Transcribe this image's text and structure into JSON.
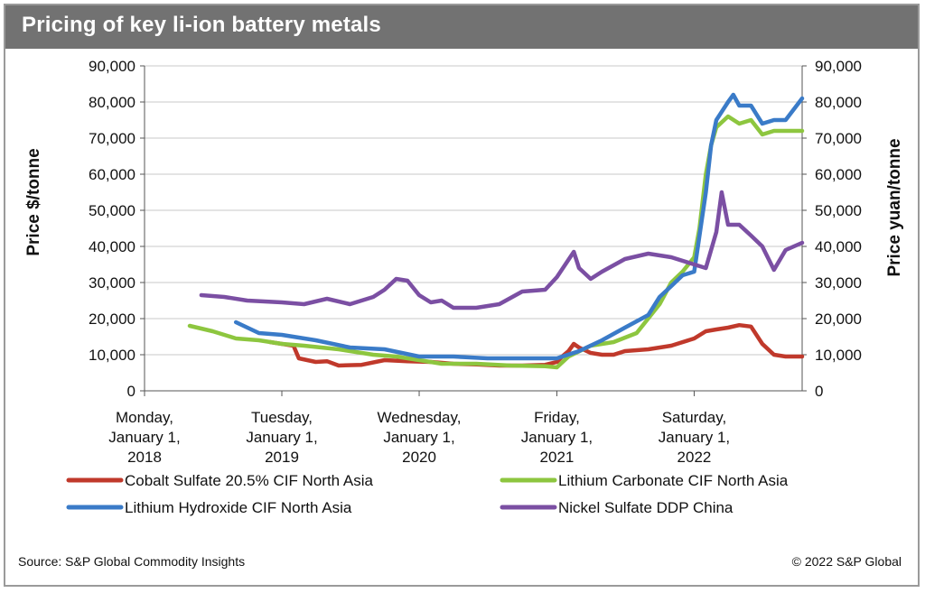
{
  "header": {
    "title": "Pricing of key li-ion battery metals"
  },
  "footer": {
    "source": "Source: S&P Global Commodity Insights",
    "copyright": "© 2022 S&P Global"
  },
  "chart_data": {
    "type": "line",
    "title": "Pricing of key li-ion battery metals",
    "ylabel": "Price $/tonne",
    "y2label": "Price yuan/tonne",
    "ylim": [
      0,
      90000
    ],
    "y2lim": [
      0,
      90000
    ],
    "yticks": [
      "0",
      "10,000",
      "20,000",
      "30,000",
      "40,000",
      "50,000",
      "60,000",
      "70,000",
      "80,000",
      "90,000"
    ],
    "y2ticks": [
      "0",
      "10,000",
      "20,000",
      "30,000",
      "40,000",
      "50,000",
      "60,000",
      "70,000",
      "80,000",
      "90,000"
    ],
    "xlim": [
      "2018-01-01",
      "2022-10-15"
    ],
    "xticks": [
      {
        "date": "2018-01-01",
        "lines": [
          "Monday,",
          "January 1,",
          "2018"
        ]
      },
      {
        "date": "2019-01-01",
        "lines": [
          "Tuesday,",
          "January 1,",
          "2019"
        ]
      },
      {
        "date": "2020-01-01",
        "lines": [
          "Wednesday,",
          "January 1,",
          "2020"
        ]
      },
      {
        "date": "2021-01-01",
        "lines": [
          "Friday,",
          "January 1,",
          "2021"
        ]
      },
      {
        "date": "2022-01-01",
        "lines": [
          "Saturday,",
          "January 1,",
          "2022"
        ]
      }
    ],
    "grid": true,
    "legend_position": "bottom",
    "series": [
      {
        "name": "Cobalt Sulfate 20.5% CIF North Asia",
        "axis": "left",
        "color": "#c0392b",
        "x": [
          "2018-12-01",
          "2019-01-01",
          "2019-02-01",
          "2019-02-15",
          "2019-04-01",
          "2019-05-01",
          "2019-06-01",
          "2019-08-01",
          "2019-10-01",
          "2019-12-01",
          "2020-02-01",
          "2020-04-01",
          "2020-06-01",
          "2020-08-01",
          "2020-10-01",
          "2020-12-01",
          "2021-01-01",
          "2021-01-15",
          "2021-02-01",
          "2021-02-15",
          "2021-03-01",
          "2021-04-01",
          "2021-05-01",
          "2021-06-01",
          "2021-07-01",
          "2021-09-01",
          "2021-11-01",
          "2022-01-01",
          "2022-02-01",
          "2022-03-01",
          "2022-04-01",
          "2022-05-01",
          "2022-06-01",
          "2022-07-01",
          "2022-08-01",
          "2022-09-01",
          "2022-10-15"
        ],
        "values": [
          13500,
          13000,
          12500,
          9000,
          8000,
          8200,
          7000,
          7200,
          8500,
          8200,
          8000,
          7500,
          7300,
          7000,
          7000,
          7200,
          8000,
          9500,
          11000,
          13000,
          12000,
          10500,
          10000,
          10000,
          11000,
          11500,
          12500,
          14500,
          16500,
          17000,
          17500,
          18200,
          17800,
          13000,
          10000,
          9500,
          9500
        ]
      },
      {
        "name": "Lithium Carbonate CIF North Asia",
        "axis": "left",
        "color": "#8dc63f",
        "x": [
          "2018-05-01",
          "2018-07-01",
          "2018-09-01",
          "2018-11-01",
          "2019-01-01",
          "2019-03-01",
          "2019-06-01",
          "2019-09-01",
          "2019-11-01",
          "2020-01-01",
          "2020-03-01",
          "2020-06-01",
          "2020-09-01",
          "2020-12-01",
          "2021-01-01",
          "2021-02-01",
          "2021-04-01",
          "2021-06-01",
          "2021-08-01",
          "2021-10-01",
          "2021-11-01",
          "2021-12-01",
          "2022-01-01",
          "2022-01-15",
          "2022-02-01",
          "2022-02-15",
          "2022-03-01",
          "2022-04-01",
          "2022-05-01",
          "2022-06-01",
          "2022-07-01",
          "2022-08-01",
          "2022-09-01",
          "2022-10-15"
        ],
        "values": [
          18000,
          16500,
          14500,
          14000,
          13000,
          12500,
          11500,
          10000,
          9500,
          8500,
          7500,
          7500,
          7000,
          6800,
          6500,
          9500,
          12500,
          13500,
          16000,
          24000,
          30000,
          33000,
          37000,
          45000,
          60000,
          68000,
          73000,
          76000,
          74000,
          75000,
          71000,
          72000,
          72000,
          72000
        ]
      },
      {
        "name": "Lithium Hydroxide CIF North Asia",
        "axis": "left",
        "color": "#3a7bc8",
        "x": [
          "2018-09-01",
          "2018-11-01",
          "2019-01-01",
          "2019-04-01",
          "2019-07-01",
          "2019-10-01",
          "2020-01-01",
          "2020-04-01",
          "2020-07-01",
          "2020-10-01",
          "2021-01-01",
          "2021-03-01",
          "2021-05-01",
          "2021-07-01",
          "2021-09-01",
          "2021-10-01",
          "2021-11-01",
          "2021-12-01",
          "2022-01-01",
          "2022-02-01",
          "2022-02-15",
          "2022-03-01",
          "2022-04-01",
          "2022-04-15",
          "2022-05-01",
          "2022-06-01",
          "2022-07-01",
          "2022-08-01",
          "2022-09-01",
          "2022-10-15"
        ],
        "values": [
          19000,
          16000,
          15500,
          14000,
          12000,
          11500,
          9500,
          9500,
          9000,
          9000,
          9000,
          11000,
          14000,
          17500,
          21000,
          26000,
          29000,
          32000,
          33000,
          55000,
          68000,
          75000,
          80000,
          82000,
          79000,
          79000,
          74000,
          75000,
          75000,
          81000
        ]
      },
      {
        "name": "Nickel Sulfate DDP China",
        "axis": "right",
        "color": "#7b4fa3",
        "x": [
          "2018-06-01",
          "2018-08-01",
          "2018-10-01",
          "2019-01-01",
          "2019-03-01",
          "2019-05-01",
          "2019-07-01",
          "2019-09-01",
          "2019-10-01",
          "2019-11-01",
          "2019-12-01",
          "2020-01-01",
          "2020-02-01",
          "2020-03-01",
          "2020-04-01",
          "2020-06-01",
          "2020-08-01",
          "2020-10-01",
          "2020-12-01",
          "2021-01-01",
          "2021-02-15",
          "2021-03-01",
          "2021-04-01",
          "2021-05-01",
          "2021-07-01",
          "2021-09-01",
          "2021-11-01",
          "2022-01-01",
          "2022-02-01",
          "2022-03-01",
          "2022-03-15",
          "2022-04-01",
          "2022-05-01",
          "2022-06-01",
          "2022-07-01",
          "2022-08-01",
          "2022-09-01",
          "2022-10-15"
        ],
        "values": [
          26500,
          26000,
          25000,
          24500,
          24000,
          25500,
          24000,
          26000,
          28000,
          31000,
          30500,
          26500,
          24500,
          25000,
          23000,
          23000,
          24000,
          27500,
          28000,
          31500,
          38500,
          34000,
          31000,
          33000,
          36500,
          38000,
          37000,
          35000,
          34000,
          44000,
          55000,
          46000,
          46000,
          43000,
          40000,
          33500,
          39000,
          41000
        ]
      }
    ]
  }
}
